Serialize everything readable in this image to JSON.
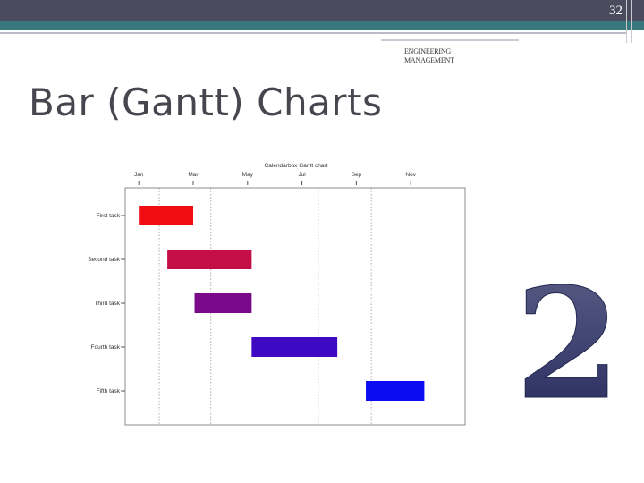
{
  "header": {
    "page_number": "32",
    "subject": "ENGINEERING MANAGEMENT"
  },
  "slide": {
    "title": "Bar (Gantt) Charts"
  },
  "decoration": {
    "numeral": "2",
    "colors": {
      "top_band": "#4a4c5e",
      "teal_band": "#39777f",
      "numeral_top": "#5b5f86",
      "numeral_bottom": "#262a5e"
    }
  },
  "chart_data": {
    "type": "gantt",
    "title": "Calendarbox Gantt chart",
    "x_ticks": [
      "Jan",
      "Mar",
      "May",
      "Jul",
      "Sep",
      "Nov"
    ],
    "x_tick_values": [
      0,
      2,
      4,
      6,
      8,
      10
    ],
    "x_range": [
      -0.5,
      12
    ],
    "grid_x": [
      0.75,
      2.65,
      6.6,
      8.55
    ],
    "grid": "vertical dotted",
    "tasks": [
      {
        "label": "First task",
        "start": 0,
        "end": 2,
        "color": "#f00d12"
      },
      {
        "label": "Second task",
        "start": 1.05,
        "end": 4.15,
        "color": "#c40e47"
      },
      {
        "label": "Third task",
        "start": 2.05,
        "end": 4.15,
        "color": "#7b0a8a"
      },
      {
        "label": "Fourth task",
        "start": 4.15,
        "end": 7.3,
        "color": "#3f08c2"
      },
      {
        "label": "Fifth task",
        "start": 8.35,
        "end": 10.5,
        "color": "#0b0cf2"
      }
    ]
  }
}
